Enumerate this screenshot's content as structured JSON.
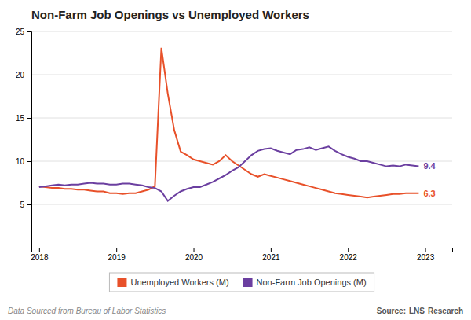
{
  "chart_data": {
    "type": "line",
    "title": "Non-Farm Job Openings vs Unemployed Workers",
    "x": [
      2018,
      2018.0833333333333,
      2018.1666666666667,
      2018.25,
      2018.3333333333333,
      2018.4166666666667,
      2018.5,
      2018.5833333333333,
      2018.6666666666667,
      2018.75,
      2018.8333333333333,
      2018.9166666666667,
      2019,
      2019.0833333333333,
      2019.1666666666667,
      2019.25,
      2019.3333333333333,
      2019.4166666666667,
      2019.5,
      2019.5833333333333,
      2019.6666666666667,
      2019.75,
      2019.8333333333333,
      2019.9166666666667,
      2020,
      2020.0833333333333,
      2020.1666666666667,
      2020.25,
      2020.3333333333333,
      2020.4166666666667,
      2020.5,
      2020.5833333333333,
      2020.6666666666667,
      2020.75,
      2020.8333333333333,
      2020.9166666666667,
      2021,
      2021.0833333333333,
      2021.1666666666667,
      2021.25,
      2021.3333333333333,
      2021.4166666666667,
      2021.5,
      2021.5833333333333,
      2021.6666666666667,
      2021.75,
      2021.8333333333333,
      2021.9166666666667,
      2022,
      2022.0833333333333,
      2022.1666666666667,
      2022.25,
      2022.3333333333333,
      2022.4166666666667,
      2022.5,
      2022.5833333333333,
      2022.6666666666667,
      2022.75,
      2022.8333333333333,
      2022.9166666666667
    ],
    "series": [
      {
        "name": "Unemployed Workers (M)",
        "color": "#e8512a",
        "values": [
          7.1,
          7.0,
          6.9,
          6.9,
          6.8,
          6.8,
          6.7,
          6.7,
          6.6,
          6.5,
          6.5,
          6.3,
          6.3,
          6.2,
          6.3,
          6.3,
          6.5,
          6.7,
          7.1,
          23.1,
          17.8,
          13.6,
          11.1,
          10.7,
          10.2,
          10.0,
          9.8,
          9.6,
          10.0,
          10.7,
          10.0,
          9.5,
          9.0,
          8.5,
          8.2,
          8.5,
          8.3,
          8.1,
          7.9,
          7.7,
          7.5,
          7.3,
          7.1,
          6.9,
          6.7,
          6.5,
          6.3,
          6.2,
          6.1,
          6.0,
          5.9,
          5.8,
          5.9,
          6.0,
          6.1,
          6.2,
          6.2,
          6.3,
          6.3,
          6.3
        ]
      },
      {
        "name": "Non-Farm Job Openings (M)",
        "color": "#6b3fa0",
        "values": [
          7.0,
          7.1,
          7.2,
          7.3,
          7.2,
          7.3,
          7.3,
          7.4,
          7.5,
          7.4,
          7.4,
          7.3,
          7.3,
          7.4,
          7.4,
          7.3,
          7.2,
          7.0,
          6.9,
          6.5,
          5.4,
          6.0,
          6.5,
          6.8,
          7.0,
          7.0,
          7.3,
          7.6,
          8.0,
          8.4,
          8.9,
          9.3,
          10.0,
          10.7,
          11.2,
          11.4,
          11.5,
          11.2,
          11.0,
          10.8,
          11.3,
          11.4,
          11.6,
          11.3,
          11.5,
          11.7,
          11.2,
          10.8,
          10.5,
          10.3,
          10.0,
          10.0,
          9.8,
          9.6,
          9.4,
          9.5,
          9.4,
          9.6,
          9.5,
          9.4
        ]
      }
    ],
    "xlim": [
      2017.9,
      2023.35
    ],
    "xticks": [
      2018,
      2019,
      2020,
      2021,
      2022,
      2023
    ],
    "ylim": [
      0,
      25
    ],
    "yticks": [
      5,
      10,
      15,
      20,
      25
    ],
    "grid": true,
    "legend": "bottom",
    "annotations": [
      {
        "text": "6.3",
        "x": 2022.9166666666667,
        "y": 6.3,
        "color": "#e8512a"
      },
      {
        "text": "9.4",
        "x": 2022.9166666666667,
        "y": 9.4,
        "color": "#6b3fa0"
      },
      {
        "text": "Data Sourced from Bureau of Labor Statistics"
      },
      {
        "text": "Source:"
      },
      {
        "text": "LNS"
      },
      {
        "text": "Research"
      }
    ]
  }
}
